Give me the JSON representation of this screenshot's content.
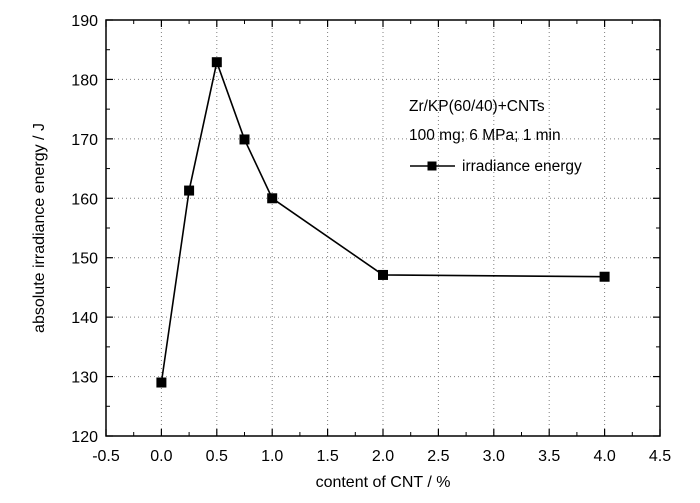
{
  "chart_data": {
    "type": "line",
    "title": "",
    "xlabel": "content of CNT / %",
    "ylabel": "absolute irradiance energy / J",
    "xlim": [
      -0.5,
      4.5
    ],
    "ylim": [
      120,
      190
    ],
    "xticks": [
      "-0.5",
      "0.0",
      "0.5",
      "1.0",
      "1.5",
      "2.0",
      "2.5",
      "3.0",
      "3.5",
      "4.0",
      "4.5"
    ],
    "yticks": [
      "120",
      "130",
      "140",
      "150",
      "160",
      "170",
      "180",
      "190"
    ],
    "grid": "dotted",
    "legend_placement": "top-right",
    "annotations": [
      "Zr/KP(60/40)+CNTs",
      "100 mg; 6 MPa; 1 min"
    ],
    "series": [
      {
        "name": "irradiance energy",
        "marker": "square",
        "color": "#000000",
        "x": [
          0.0,
          0.25,
          0.5,
          0.75,
          1.0,
          2.0,
          4.0
        ],
        "y": [
          129,
          161.3,
          182.9,
          169.9,
          160.0,
          147.1,
          146.8
        ]
      }
    ]
  }
}
